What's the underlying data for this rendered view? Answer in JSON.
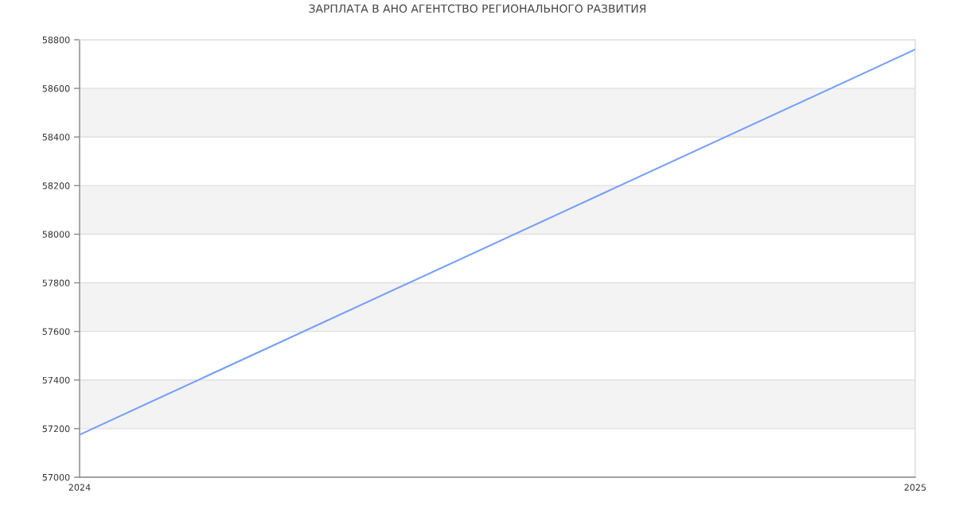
{
  "chart_data": {
    "type": "line",
    "title": "ЗАРПЛАТА В АНО АГЕНТСТВО РЕГИОНАЛЬНОГО РАЗВИТИЯ",
    "x": [
      2024,
      2025
    ],
    "series": [
      {
        "color": "#76a0f5",
        "values": [
          57175,
          58760
        ]
      }
    ],
    "xlim": [
      2024,
      2025
    ],
    "xticks": [
      2024,
      2025
    ],
    "ylim": [
      57000,
      58800
    ],
    "yticks": [
      57000,
      57200,
      57400,
      57600,
      57800,
      58000,
      58200,
      58400,
      58600,
      58800
    ],
    "bands": [
      {
        "axis": "y",
        "from": 57200,
        "to": 57400,
        "color": "#f3f3f3"
      },
      {
        "axis": "y",
        "from": 57600,
        "to": 57800,
        "color": "#f3f3f3"
      },
      {
        "axis": "y",
        "from": 58000,
        "to": 58200,
        "color": "#f3f3f3"
      },
      {
        "axis": "y",
        "from": 58400,
        "to": 58600,
        "color": "#f3f3f3"
      }
    ],
    "grid": true,
    "line_style": "solid"
  }
}
